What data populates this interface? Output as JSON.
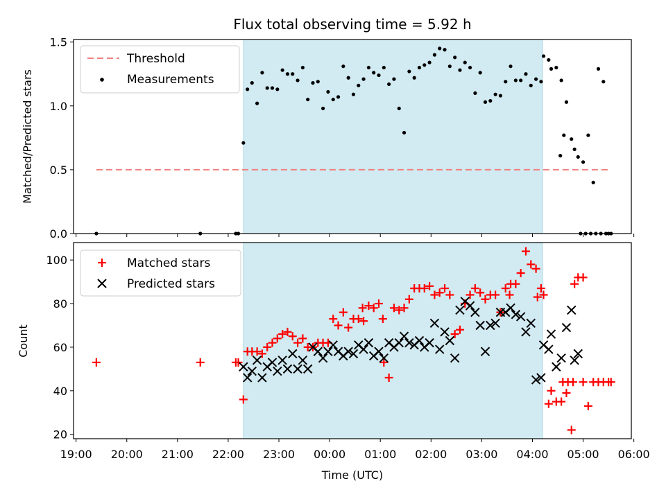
{
  "figure": {
    "title": "Flux total observing time = 5.92 h",
    "xlabel": "Time (UTC)",
    "x_ticks": [
      "19:00",
      "20:00",
      "21:00",
      "22:00",
      "23:00",
      "00:00",
      "01:00",
      "02:00",
      "03:00",
      "04:00",
      "05:00",
      "06:00"
    ]
  },
  "chart_data": [
    {
      "type": "scatter",
      "title": "Flux total observing time = 5.92 h",
      "ylabel": "Matched/Predicted stars",
      "ylim": [
        0,
        1.52
      ],
      "y_ticks": [
        "0.0",
        "0.5",
        "1.0",
        "1.5"
      ],
      "x_unit": "hours since 19:00 UTC",
      "xlim": [
        -0.05,
        10.95
      ],
      "shaded_interval": {
        "start": "22:18",
        "end": "04:12",
        "color": "#add8e6"
      },
      "legend": {
        "position": "top-left",
        "entries": [
          "Threshold",
          "Measurements"
        ]
      },
      "threshold": {
        "name": "Threshold",
        "value": 0.5,
        "x_start": 0.4,
        "x_end": 10.55,
        "color": "#f08080"
      },
      "series": [
        {
          "name": "Measurements",
          "color": "#000000",
          "x": [
            0.4,
            2.45,
            3.15,
            3.2,
            3.3,
            3.38,
            3.47,
            3.57,
            3.67,
            3.77,
            3.87,
            3.97,
            4.07,
            4.17,
            4.27,
            4.37,
            4.47,
            4.57,
            4.67,
            4.77,
            4.87,
            4.97,
            5.07,
            5.17,
            5.27,
            5.37,
            5.47,
            5.57,
            5.67,
            5.77,
            5.87,
            5.97,
            6.07,
            6.17,
            6.27,
            6.37,
            6.47,
            6.57,
            6.67,
            6.77,
            6.87,
            6.97,
            7.07,
            7.17,
            7.27,
            7.37,
            7.47,
            7.57,
            7.67,
            7.77,
            7.87,
            7.97,
            8.07,
            8.17,
            8.27,
            8.37,
            8.47,
            8.57,
            8.67,
            8.77,
            8.87,
            8.97,
            9.07,
            9.17,
            9.22,
            9.32,
            9.37,
            9.47,
            9.57,
            9.67,
            9.77,
            9.83,
            9.9,
            10.0,
            10.1,
            10.2,
            10.3,
            10.4,
            10.5
          ],
          "y": [
            0.0,
            0.0,
            0.0,
            0.0,
            0.71,
            1.13,
            1.18,
            1.02,
            1.26,
            1.14,
            1.14,
            1.13,
            1.28,
            1.25,
            1.25,
            1.2,
            1.3,
            1.05,
            1.18,
            1.19,
            0.98,
            1.11,
            1.05,
            1.07,
            1.31,
            1.22,
            1.09,
            1.16,
            1.21,
            1.3,
            1.26,
            1.24,
            1.3,
            1.17,
            1.21,
            0.98,
            0.79,
            1.27,
            1.22,
            1.3,
            1.32,
            1.34,
            1.4,
            1.45,
            1.44,
            1.31,
            1.38,
            1.28,
            1.34,
            1.3,
            1.1,
            1.26,
            1.03,
            1.04,
            1.09,
            1.08,
            1.19,
            1.31,
            1.2,
            1.2,
            1.25,
            1.16,
            1.21,
            1.19,
            1.39,
            1.36,
            1.29,
            1.3,
            1.2,
            1.03,
            0.74,
            0.66,
            0.6,
            0.56,
            0.77,
            0.4,
            1.29,
            1.19,
            0.0
          ],
          "extra": [
            [
              9.55,
              0.61
            ],
            [
              9.62,
              0.77
            ],
            [
              9.95,
              0.0
            ],
            [
              10.05,
              0.0
            ],
            [
              10.15,
              0.0
            ],
            [
              10.25,
              0.0
            ],
            [
              10.35,
              0.0
            ],
            [
              10.45,
              0.0
            ],
            [
              10.55,
              0.0
            ]
          ]
        }
      ]
    },
    {
      "type": "scatter",
      "ylabel": "Count",
      "ylim": [
        18,
        108
      ],
      "y_ticks": [
        "20",
        "40",
        "60",
        "80",
        "100"
      ],
      "x_unit": "hours since 19:00 UTC",
      "xlim": [
        -0.05,
        10.95
      ],
      "shaded_interval": {
        "start": "22:18",
        "end": "04:12",
        "color": "#add8e6"
      },
      "legend": {
        "position": "top-left",
        "entries": [
          "Matched stars",
          "Predicted stars"
        ]
      },
      "series": [
        {
          "name": "Matched stars",
          "marker": "plus",
          "color": "#ff0000",
          "x": [
            0.4,
            2.45,
            3.15,
            3.2,
            3.3,
            3.38,
            3.47,
            3.57,
            3.67,
            3.77,
            3.87,
            3.97,
            4.07,
            4.17,
            4.27,
            4.37,
            4.47,
            4.57,
            4.67,
            4.77,
            4.87,
            4.97,
            5.07,
            5.17,
            5.27,
            5.37,
            5.47,
            5.57,
            5.67,
            5.77,
            5.87,
            5.97,
            6.07,
            6.17,
            6.27,
            6.37,
            6.47,
            6.57,
            6.67,
            6.77,
            6.87,
            6.97,
            7.07,
            7.17,
            7.27,
            7.37,
            7.47,
            7.57,
            7.67,
            7.77,
            7.87,
            7.97,
            8.07,
            8.17,
            8.27,
            8.37,
            8.47,
            8.57,
            8.67,
            8.77,
            8.87,
            8.97,
            9.07,
            9.17,
            9.22,
            9.32,
            9.37,
            9.47,
            9.57,
            9.67,
            9.77,
            9.83,
            9.9,
            10.0,
            10.1,
            10.2,
            10.3,
            10.4,
            10.5
          ],
          "y": [
            53,
            53,
            53,
            53,
            36,
            58,
            58,
            58,
            57,
            60,
            62,
            64,
            66,
            67,
            65,
            62,
            64,
            60,
            60,
            62,
            62,
            62,
            73,
            70,
            76,
            69,
            73,
            73,
            72,
            79,
            78,
            80,
            53,
            46,
            78,
            77,
            78,
            82,
            87,
            87,
            87,
            88,
            84,
            85,
            87,
            84,
            66,
            68,
            80,
            84,
            87,
            85,
            82,
            84,
            84,
            76,
            87,
            89,
            89,
            94,
            104,
            98,
            96,
            87,
            84,
            34,
            40,
            35,
            35,
            39,
            22,
            89,
            92,
            92,
            33,
            44,
            44,
            44,
            44
          ],
          "extra": [
            [
              5.65,
              78
            ],
            [
              6.05,
              73
            ],
            [
              8.55,
              84
            ],
            [
              9.1,
              83
            ],
            [
              9.6,
              44
            ],
            [
              9.7,
              44
            ],
            [
              9.8,
              44
            ],
            [
              10.0,
              44
            ],
            [
              10.55,
              44
            ]
          ]
        },
        {
          "name": "Predicted stars",
          "marker": "x",
          "color": "#000000",
          "x": [
            3.3,
            3.38,
            3.47,
            3.57,
            3.67,
            3.77,
            3.87,
            3.97,
            4.07,
            4.17,
            4.27,
            4.37,
            4.47,
            4.57,
            4.67,
            4.77,
            4.87,
            4.97,
            5.07,
            5.17,
            5.27,
            5.37,
            5.47,
            5.57,
            5.67,
            5.77,
            5.87,
            5.97,
            6.07,
            6.17,
            6.27,
            6.37,
            6.47,
            6.57,
            6.67,
            6.77,
            6.87,
            6.97,
            7.07,
            7.17,
            7.27,
            7.37,
            7.47,
            7.57,
            7.67,
            7.77,
            7.87,
            7.97,
            8.07,
            8.17,
            8.27,
            8.37,
            8.47,
            8.57,
            8.67,
            8.77,
            8.87,
            8.97,
            9.07,
            9.17,
            9.22,
            9.32,
            9.37,
            9.47,
            9.57,
            9.67,
            9.77,
            9.83,
            9.9
          ],
          "y": [
            51,
            46,
            49,
            54,
            46,
            51,
            53,
            49,
            54,
            50,
            57,
            50,
            54,
            50,
            60,
            58,
            55,
            58,
            61,
            58,
            56,
            58,
            57,
            61,
            59,
            62,
            56,
            58,
            55,
            62,
            60,
            62,
            65,
            62,
            61,
            63,
            60,
            62,
            71,
            59,
            67,
            63,
            55,
            77,
            81,
            79,
            76,
            70,
            58,
            70,
            71,
            76,
            76,
            78,
            75,
            74,
            67,
            71,
            45,
            46,
            61,
            59,
            66,
            51,
            55,
            69,
            77,
            54,
            57
          ]
        }
      ]
    }
  ]
}
